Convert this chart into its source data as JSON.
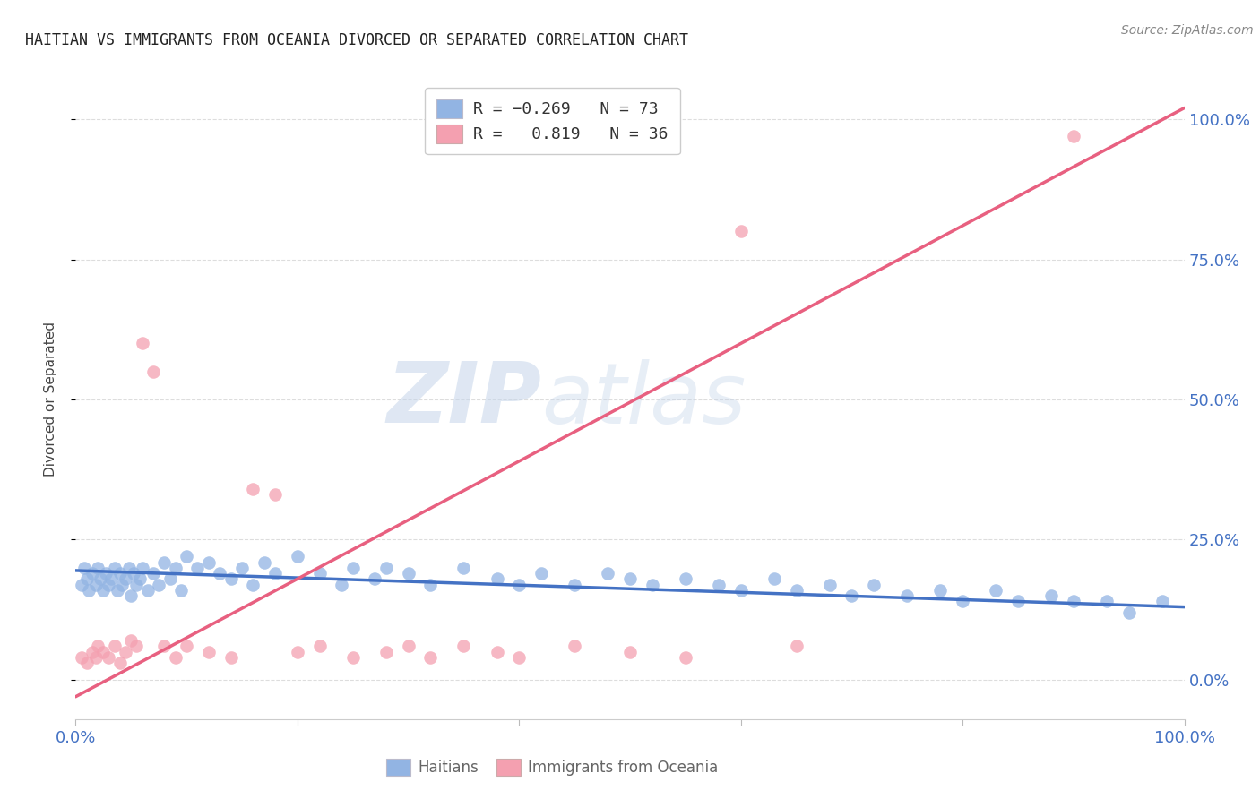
{
  "title": "HAITIAN VS IMMIGRANTS FROM OCEANIA DIVORCED OR SEPARATED CORRELATION CHART",
  "source": "Source: ZipAtlas.com",
  "ylabel": "Divorced or Separated",
  "yticks_labels": [
    "0.0%",
    "25.0%",
    "50.0%",
    "75.0%",
    "100.0%"
  ],
  "ytick_vals": [
    0.0,
    0.25,
    0.5,
    0.75,
    1.0
  ],
  "xlim": [
    0.0,
    1.0
  ],
  "ylim": [
    -0.07,
    1.07
  ],
  "blue_color": "#92B4E3",
  "pink_color": "#F4A0B0",
  "blue_line_color": "#4472C4",
  "pink_line_color": "#E86080",
  "watermark_zip": "ZIP",
  "watermark_atlas": "atlas",
  "background_color": "#FFFFFF",
  "grid_color": "#DDDDDD",
  "blue_trend": [
    0.0,
    0.195,
    1.0,
    0.13
  ],
  "pink_trend": [
    0.0,
    -0.03,
    1.0,
    1.02
  ],
  "blue_x": [
    0.005,
    0.008,
    0.01,
    0.012,
    0.015,
    0.018,
    0.02,
    0.022,
    0.025,
    0.027,
    0.03,
    0.032,
    0.035,
    0.038,
    0.04,
    0.042,
    0.045,
    0.048,
    0.05,
    0.052,
    0.055,
    0.058,
    0.06,
    0.065,
    0.07,
    0.075,
    0.08,
    0.085,
    0.09,
    0.095,
    0.1,
    0.11,
    0.12,
    0.13,
    0.14,
    0.15,
    0.16,
    0.17,
    0.18,
    0.2,
    0.22,
    0.24,
    0.25,
    0.27,
    0.28,
    0.3,
    0.32,
    0.35,
    0.38,
    0.4,
    0.42,
    0.45,
    0.48,
    0.5,
    0.52,
    0.55,
    0.58,
    0.6,
    0.63,
    0.65,
    0.68,
    0.7,
    0.72,
    0.75,
    0.78,
    0.8,
    0.83,
    0.85,
    0.88,
    0.9,
    0.93,
    0.95,
    0.98
  ],
  "blue_y": [
    0.17,
    0.2,
    0.18,
    0.16,
    0.19,
    0.17,
    0.2,
    0.18,
    0.16,
    0.19,
    0.17,
    0.18,
    0.2,
    0.16,
    0.19,
    0.17,
    0.18,
    0.2,
    0.15,
    0.19,
    0.17,
    0.18,
    0.2,
    0.16,
    0.19,
    0.17,
    0.21,
    0.18,
    0.2,
    0.16,
    0.22,
    0.2,
    0.21,
    0.19,
    0.18,
    0.2,
    0.17,
    0.21,
    0.19,
    0.22,
    0.19,
    0.17,
    0.2,
    0.18,
    0.2,
    0.19,
    0.17,
    0.2,
    0.18,
    0.17,
    0.19,
    0.17,
    0.19,
    0.18,
    0.17,
    0.18,
    0.17,
    0.16,
    0.18,
    0.16,
    0.17,
    0.15,
    0.17,
    0.15,
    0.16,
    0.14,
    0.16,
    0.14,
    0.15,
    0.14,
    0.14,
    0.12,
    0.14
  ],
  "pink_x": [
    0.005,
    0.01,
    0.015,
    0.018,
    0.02,
    0.025,
    0.03,
    0.035,
    0.04,
    0.045,
    0.05,
    0.055,
    0.06,
    0.07,
    0.08,
    0.09,
    0.1,
    0.12,
    0.14,
    0.16,
    0.18,
    0.2,
    0.22,
    0.25,
    0.28,
    0.3,
    0.32,
    0.35,
    0.38,
    0.4,
    0.45,
    0.5,
    0.55,
    0.6,
    0.65,
    0.9
  ],
  "pink_y": [
    0.04,
    0.03,
    0.05,
    0.04,
    0.06,
    0.05,
    0.04,
    0.06,
    0.03,
    0.05,
    0.07,
    0.06,
    0.6,
    0.55,
    0.06,
    0.04,
    0.06,
    0.05,
    0.04,
    0.34,
    0.33,
    0.05,
    0.06,
    0.04,
    0.05,
    0.06,
    0.04,
    0.06,
    0.05,
    0.04,
    0.06,
    0.05,
    0.04,
    0.8,
    0.06,
    0.97
  ]
}
